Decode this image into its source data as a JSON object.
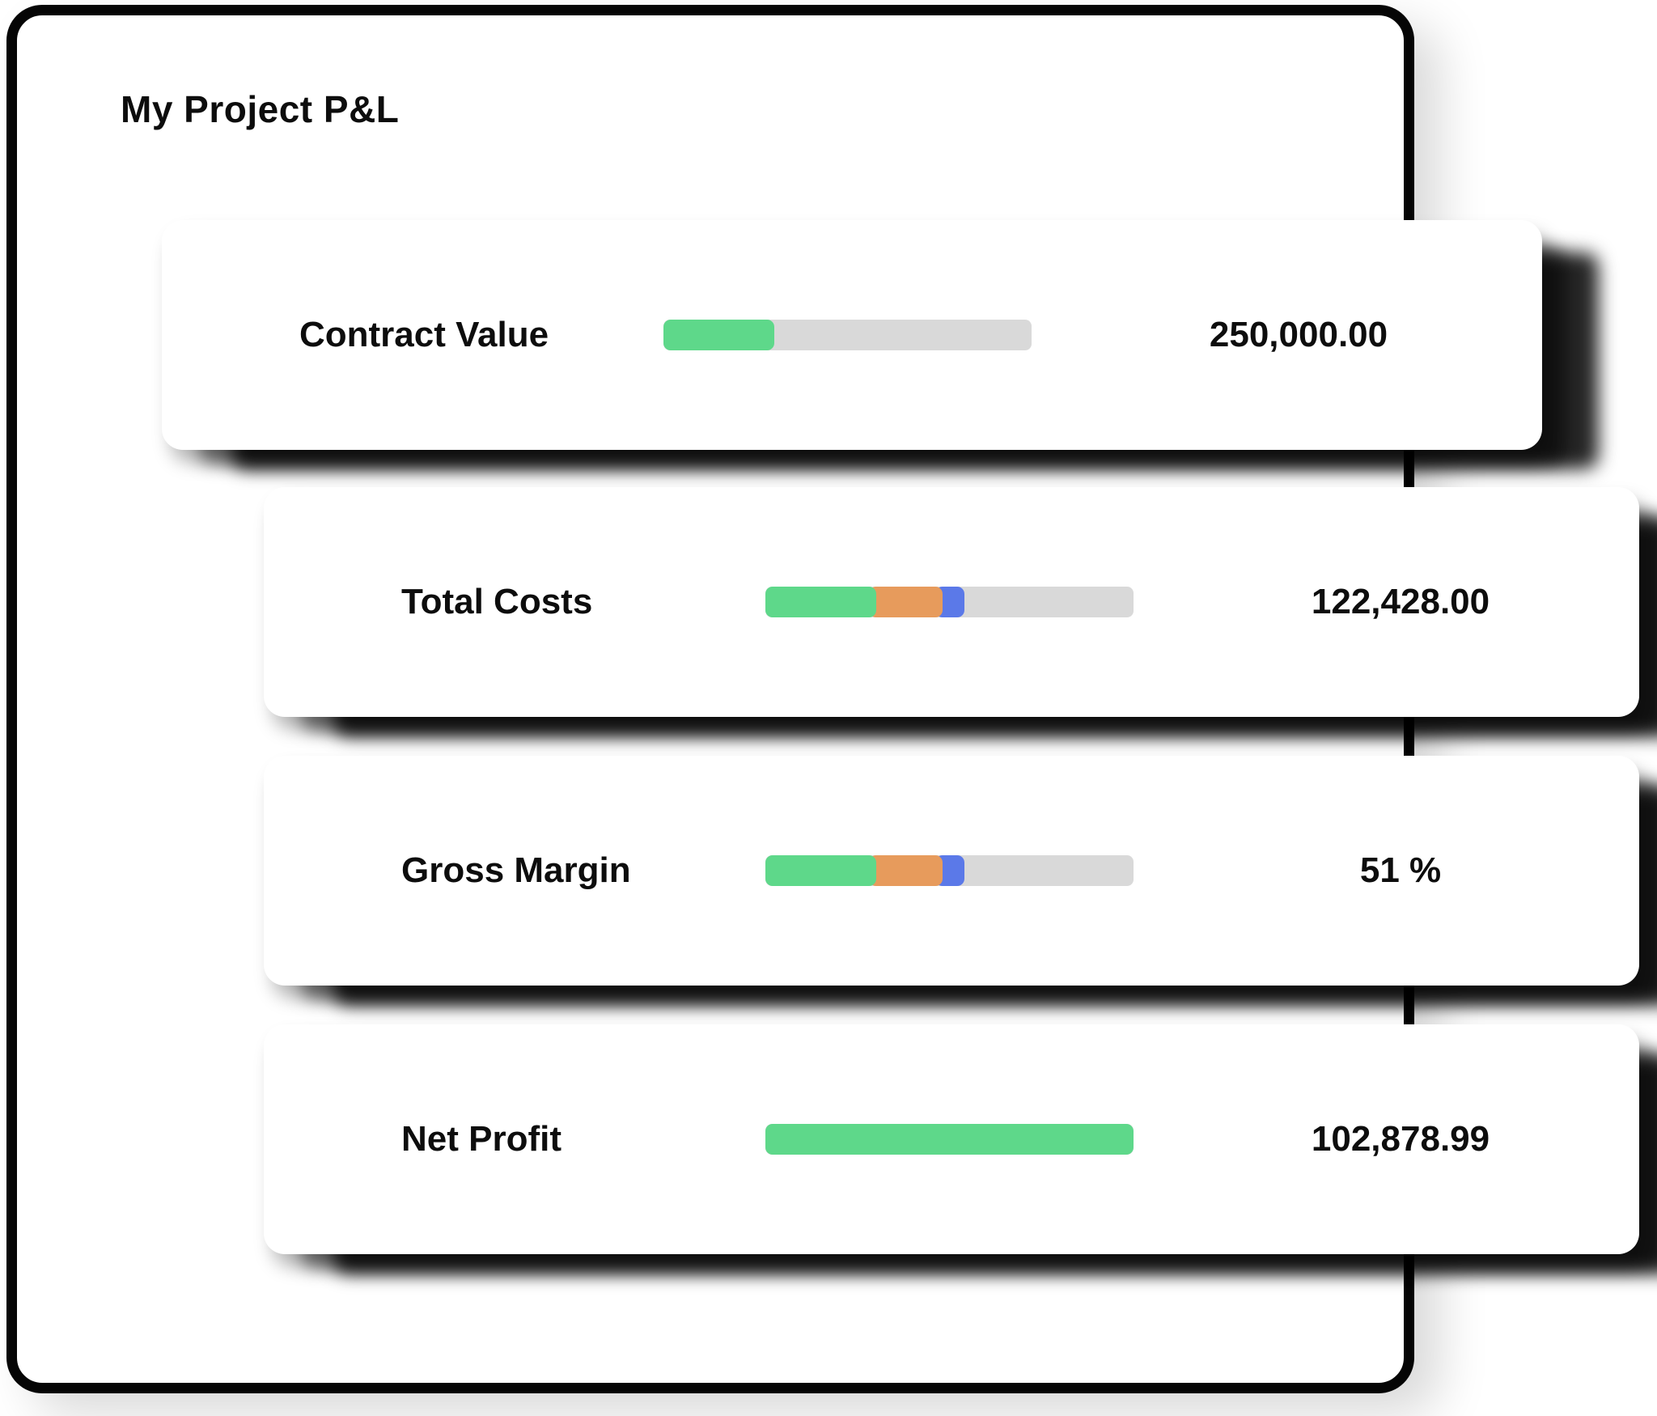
{
  "title": "My Project P&L",
  "colors": {
    "green": "#5ed88a",
    "orange": "#e79b5c",
    "blue": "#5b79e8",
    "track": "#d9d9d9",
    "text": "#0d0d0d",
    "card_border": "#050505",
    "card_bg": "#ffffff"
  },
  "rows": [
    {
      "label": "Contract Value",
      "value": "250,000.00",
      "segments": [
        {
          "color": "green",
          "pct": 30
        }
      ]
    },
    {
      "label": "Total Costs",
      "value": "122,428.00",
      "segments": [
        {
          "color": "green",
          "pct": 30
        },
        {
          "color": "orange",
          "pct": 20
        },
        {
          "color": "blue",
          "pct": 8
        }
      ]
    },
    {
      "label": "Gross Margin",
      "value": "51 %",
      "segments": [
        {
          "color": "green",
          "pct": 30
        },
        {
          "color": "orange",
          "pct": 20
        },
        {
          "color": "blue",
          "pct": 8
        }
      ]
    },
    {
      "label": "Net Profit",
      "value": "102,878.99",
      "segments": [
        {
          "color": "green",
          "pct": 100
        }
      ]
    }
  ],
  "chart_data": {
    "type": "bar",
    "title": "My Project P&L",
    "categories": [
      "Contract Value",
      "Total Costs",
      "Gross Margin",
      "Net Profit"
    ],
    "values": [
      250000.0,
      122428.0,
      51,
      102878.99
    ],
    "value_labels": [
      "250,000.00",
      "122,428.00",
      "51 %",
      "102,878.99"
    ],
    "bar_segment_percents": [
      {
        "green": 30
      },
      {
        "green": 30,
        "orange": 20,
        "blue": 8
      },
      {
        "green": 30,
        "orange": 20,
        "blue": 8
      },
      {
        "green": 100
      }
    ],
    "legend_position": "none",
    "grid": false
  }
}
